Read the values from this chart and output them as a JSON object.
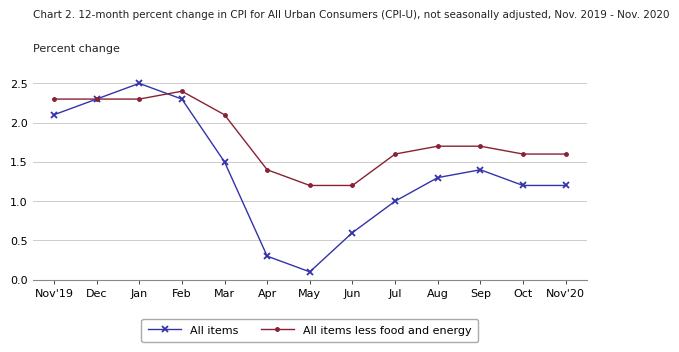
{
  "title": "Chart 2. 12-month percent change in CPI for All Urban Consumers (CPI-U), not seasonally adjusted, Nov. 2019 - Nov. 2020",
  "ylabel": "Percent change",
  "x_labels": [
    "Nov'19",
    "Dec",
    "Jan",
    "Feb",
    "Mar",
    "Apr",
    "May",
    "Jun",
    "Jul",
    "Aug",
    "Sep",
    "Oct",
    "Nov'20"
  ],
  "all_items": [
    2.1,
    2.3,
    2.5,
    2.3,
    1.5,
    0.3,
    0.1,
    0.6,
    1.0,
    1.3,
    1.4,
    1.2,
    1.2
  ],
  "core_items": [
    2.3,
    2.3,
    2.3,
    2.4,
    2.1,
    1.4,
    1.2,
    1.2,
    1.6,
    1.7,
    1.7,
    1.6,
    1.6
  ],
  "all_items_color": "#3333aa",
  "core_items_color": "#882233",
  "ylim": [
    0.0,
    2.7
  ],
  "yticks": [
    0.0,
    0.5,
    1.0,
    1.5,
    2.0,
    2.5
  ],
  "legend_label_all": "All items",
  "legend_label_core": "All items less food and energy",
  "title_fontsize": 7.5,
  "ylabel_fontsize": 8,
  "tick_fontsize": 8,
  "legend_fontsize": 8,
  "background_color": "#ffffff",
  "grid_color": "#cccccc"
}
